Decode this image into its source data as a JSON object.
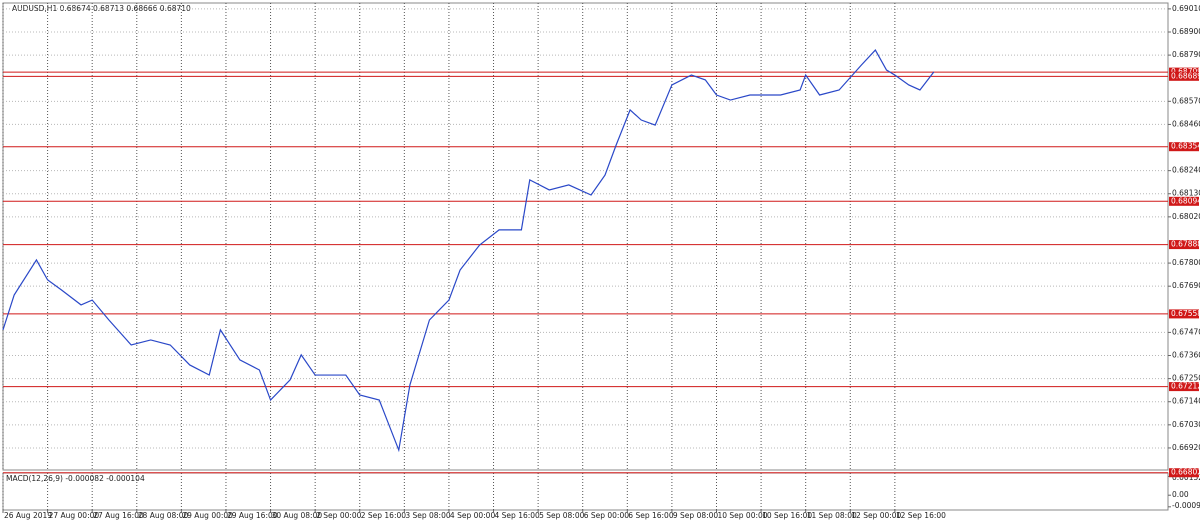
{
  "chart_data": {
    "type": "line",
    "title": "AUDUSD,H1  0.68674 0.68713 0.68666 0.68710",
    "x": [
      0,
      4,
      12,
      16,
      21,
      28,
      32,
      38,
      46,
      53,
      60,
      67,
      74,
      78,
      85,
      92,
      96,
      103,
      107,
      112,
      117,
      123,
      128,
      135,
      142,
      146,
      153,
      160,
      164,
      171,
      178,
      186,
      189,
      196,
      203,
      211,
      216,
      220,
      225,
      229,
      234,
      240,
      247,
      252,
      256,
      261,
      268,
      272,
      279,
      286,
      288,
      293,
      300,
      308,
      313,
      317,
      320,
      325,
      329,
      334
    ],
    "series": [
      {
        "color": "#2a48c8",
        "values": [
          0.67482,
          0.67648,
          0.67815,
          0.6772,
          0.67672,
          0.67601,
          0.67624,
          0.67529,
          0.6741,
          0.67434,
          0.6741,
          0.67315,
          0.67267,
          0.67482,
          0.67339,
          0.67291,
          0.67148,
          0.67244,
          0.67363,
          0.67267,
          0.67267,
          0.67267,
          0.67172,
          0.67148,
          0.6691,
          0.6722,
          0.67529,
          0.67624,
          0.67767,
          0.67886,
          0.67958,
          0.67958,
          0.68196,
          0.68148,
          0.68172,
          0.68124,
          0.68219,
          0.68362,
          0.68529,
          0.68481,
          0.68457,
          0.68648,
          0.68695,
          0.68672,
          0.686,
          0.68576,
          0.686,
          0.686,
          0.686,
          0.68624,
          0.68695,
          0.686,
          0.68624,
          0.68743,
          0.68814,
          0.68719,
          0.68695,
          0.68648,
          0.68624,
          0.6871
        ]
      }
    ],
    "xlim": [
      0,
      418
    ],
    "xticks": [
      {
        "value": 0,
        "label": "26 Aug 2019"
      },
      {
        "value": 16,
        "label": "27 Aug 00:00"
      },
      {
        "value": 32,
        "label": "27 Aug 16:00"
      },
      {
        "value": 48,
        "label": "28 Aug 08:00"
      },
      {
        "value": 64,
        "label": "29 Aug 00:00"
      },
      {
        "value": 80,
        "label": "29 Aug 16:00"
      },
      {
        "value": 96,
        "label": "30 Aug 08:00"
      },
      {
        "value": 112,
        "label": "2 Sep 00:00"
      },
      {
        "value": 128,
        "label": "2 Sep 16:00"
      },
      {
        "value": 144,
        "label": "3 Sep 08:00"
      },
      {
        "value": 160,
        "label": "4 Sep 00:00"
      },
      {
        "value": 176,
        "label": "4 Sep 16:00"
      },
      {
        "value": 192,
        "label": "5 Sep 08:00"
      },
      {
        "value": 208,
        "label": "6 Sep 00:00"
      },
      {
        "value": 224,
        "label": "6 Sep 16:00"
      },
      {
        "value": 240,
        "label": "9 Sep 08:00"
      },
      {
        "value": 256,
        "label": "10 Sep 00:00"
      },
      {
        "value": 272,
        "label": "10 Sep 16:00"
      },
      {
        "value": 288,
        "label": "11 Sep 08:00"
      },
      {
        "value": 304,
        "label": "12 Sep 00:00"
      },
      {
        "value": 320,
        "label": "12 Sep 16:00"
      }
    ],
    "ylim": [
      0.66815,
      0.69038
    ],
    "yticks": [
      {
        "value": 0.6901,
        "label": "0.69010"
      },
      {
        "value": 0.689,
        "label": "0.68900"
      },
      {
        "value": 0.6879,
        "label": "0.68790"
      },
      {
        "value": 0.6857,
        "label": "0.68570"
      },
      {
        "value": 0.6846,
        "label": "0.68460"
      },
      {
        "value": 0.6824,
        "label": "0.68240"
      },
      {
        "value": 0.6813,
        "label": "0.68130"
      },
      {
        "value": 0.6802,
        "label": "0.68020"
      },
      {
        "value": 0.678,
        "label": "0.67800"
      },
      {
        "value": 0.6769,
        "label": "0.67690"
      },
      {
        "value": 0.6747,
        "label": "0.67470"
      },
      {
        "value": 0.6736,
        "label": "0.67360"
      },
      {
        "value": 0.6725,
        "label": "0.67250"
      },
      {
        "value": 0.6714,
        "label": "0.67140"
      },
      {
        "value": 0.6703,
        "label": "0.67030"
      },
      {
        "value": 0.6692,
        "label": "0.66920"
      }
    ],
    "grid": true,
    "levels": {
      "color": "#d01818",
      "values": [
        0.68709,
        0.68689,
        0.68354,
        0.68094,
        0.67888,
        0.67558,
        0.67212,
        0.66802
      ]
    },
    "macd": {
      "label": "MACD(12,26,9) -0.000082 -0.000104",
      "ylim": [
        -0.0012,
        0.0018
      ],
      "yticks": [
        {
          "value": 0.001521,
          "label": "0.001521"
        },
        {
          "value": 0,
          "label": "0.00"
        },
        {
          "value": -0.000942,
          "label": "-0.000942"
        }
      ]
    }
  }
}
